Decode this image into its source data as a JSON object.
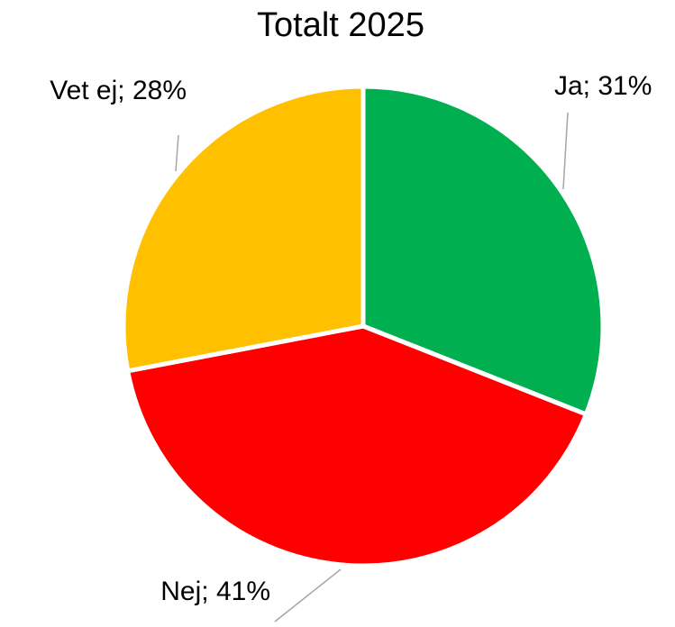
{
  "chart_data": {
    "type": "pie",
    "title": "Totalt 2025",
    "categories": [
      "Ja",
      "Nej",
      "Vet ej"
    ],
    "values": [
      31,
      41,
      28
    ],
    "value_labels": [
      "Ja; 31%",
      "Nej; 41%",
      "Vet ej; 28%"
    ],
    "colors": [
      "#00b050",
      "#ff0000",
      "#ffc000"
    ]
  }
}
